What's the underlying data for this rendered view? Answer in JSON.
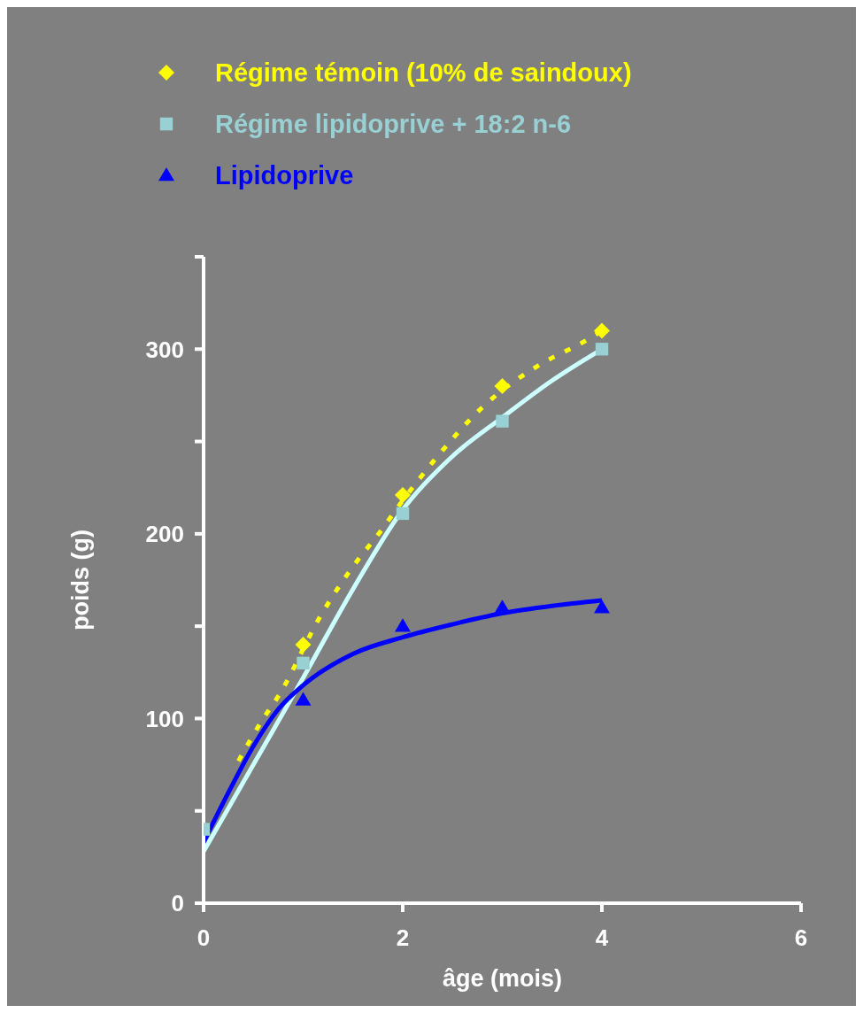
{
  "chart_data": {
    "type": "scatter",
    "xlabel": "âge (mois)",
    "ylabel": "poids (g)",
    "xlim": [
      0,
      6
    ],
    "xticks": [
      0,
      2,
      4,
      6
    ],
    "ylim": [
      0,
      350
    ],
    "yticks": [
      0,
      {
        "value": 50,
        "label": null
      },
      100,
      {
        "value": 150,
        "label": null
      },
      200,
      {
        "value": 250,
        "label": null
      },
      300,
      {
        "value": 350,
        "label": null
      }
    ],
    "grid": false,
    "legend": "top left",
    "series": [
      {
        "name": "Régime témoin (10% de saindoux)",
        "marker": "diamond",
        "color": "#ffff00",
        "x": [
          1,
          2,
          3,
          4
        ],
        "values": [
          140,
          221,
          280,
          310
        ]
      },
      {
        "type": "line",
        "line_style": "dashed",
        "marker": "none",
        "color": "#ffff00",
        "x": [
          0.35,
          0.6,
          0.75,
          1.18,
          1.58,
          1.73,
          2,
          2.32,
          2.81,
          3.39,
          3.82,
          4
        ],
        "values": [
          77,
          100,
          112,
          156,
          188,
          198,
          218,
          240,
          269,
          292,
          304,
          310
        ]
      },
      {
        "name": "Régime lipidoprive + 18:2 n-6",
        "marker": "square",
        "color": "#99d0d4",
        "x": [
          0,
          1,
          2,
          3,
          4
        ],
        "values": [
          40,
          130,
          211,
          261,
          300
        ]
      },
      {
        "type": "line",
        "line_style": "solid",
        "marker": "none",
        "color": "#ccffff",
        "x": [
          0,
          0.5,
          1,
          1.5,
          2,
          2.5,
          3,
          3.5,
          4
        ],
        "values": [
          28,
          75,
          122,
          170,
          213,
          242,
          263,
          283,
          300
        ]
      },
      {
        "name": "Lipidoprive",
        "marker": "triangle",
        "color": "#0000ff",
        "x": [
          1,
          2,
          3,
          4
        ],
        "values": [
          110,
          150,
          160,
          160
        ]
      },
      {
        "type": "line",
        "line_style": "solid",
        "marker": "none",
        "color": "#0000ff",
        "x": [
          0,
          0.25,
          0.5,
          0.75,
          1,
          1.5,
          2,
          2.5,
          3,
          3.5,
          4
        ],
        "values": [
          33,
          60,
          85,
          105,
          118,
          135,
          144,
          151,
          157,
          161,
          164
        ]
      }
    ]
  }
}
